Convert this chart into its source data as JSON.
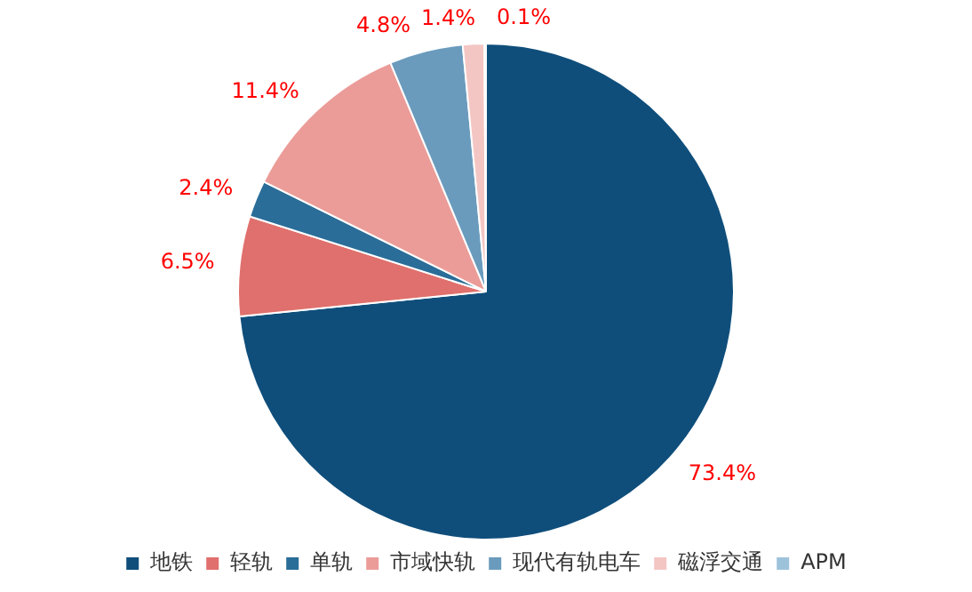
{
  "chart_data": {
    "type": "pie",
    "categories": [
      "地铁",
      "轻轨",
      "单轨",
      "市域快轨",
      "现代有轨电车",
      "磁浮交通",
      "APM"
    ],
    "values": [
      73.4,
      6.5,
      2.4,
      11.4,
      4.8,
      1.4,
      0.1
    ],
    "colors": [
      "#0f4e7b",
      "#e0706d",
      "#2a6d98",
      "#eb9c98",
      "#6a9bbd",
      "#f3c6c4",
      "#9dc3db"
    ],
    "value_labels": [
      "73.4%",
      "6.5%",
      "2.4%",
      "11.4%",
      "4.8%",
      "1.4%",
      "0.1%"
    ],
    "legend": "bottom"
  }
}
